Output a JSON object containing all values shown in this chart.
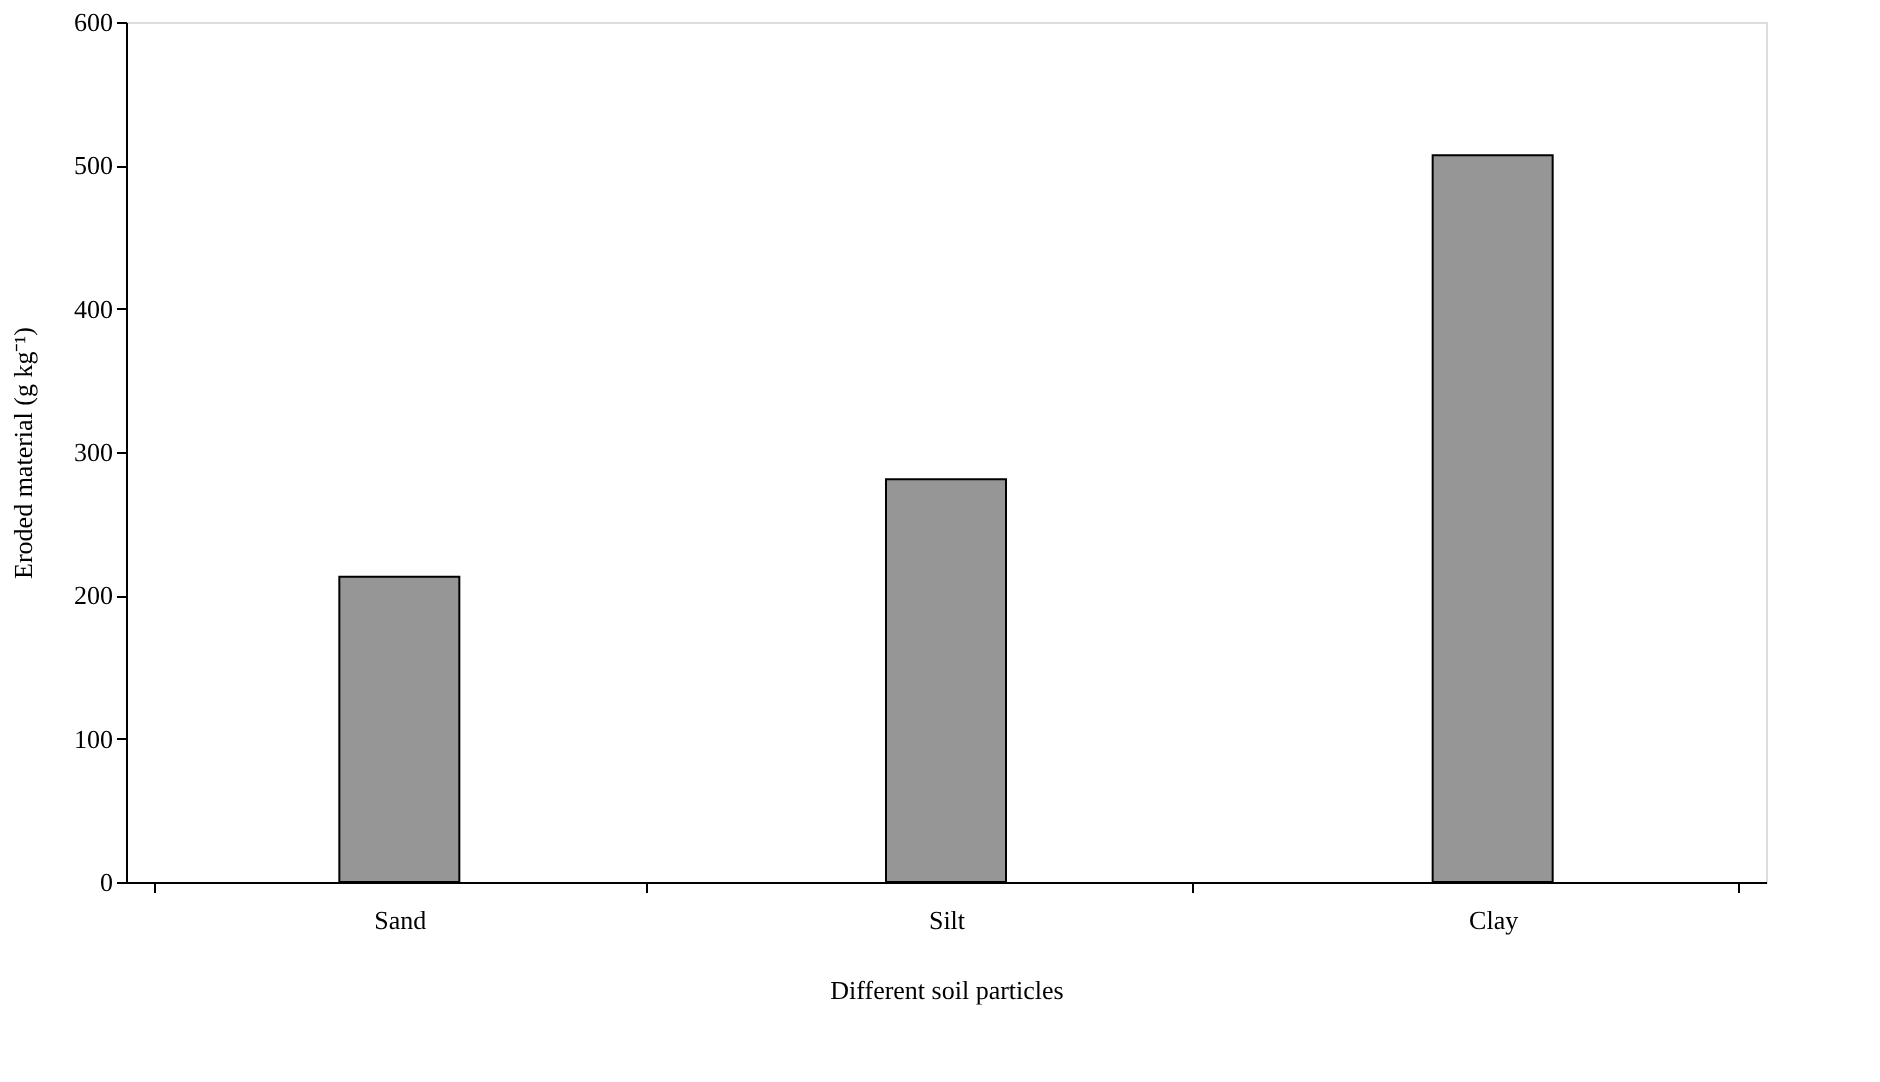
{
  "chart_data": {
    "type": "bar",
    "xlabel": "Different soil particles",
    "ylabel": "Eroded material (g kg⁻¹)",
    "categories": [
      "Sand",
      "Silt",
      "Clay"
    ],
    "values": [
      213,
      281,
      507
    ],
    "color": "#969696",
    "ylim": [
      0,
      600
    ],
    "yticks": [
      0,
      100,
      200,
      300,
      400,
      500,
      600
    ],
    "grid": false
  }
}
